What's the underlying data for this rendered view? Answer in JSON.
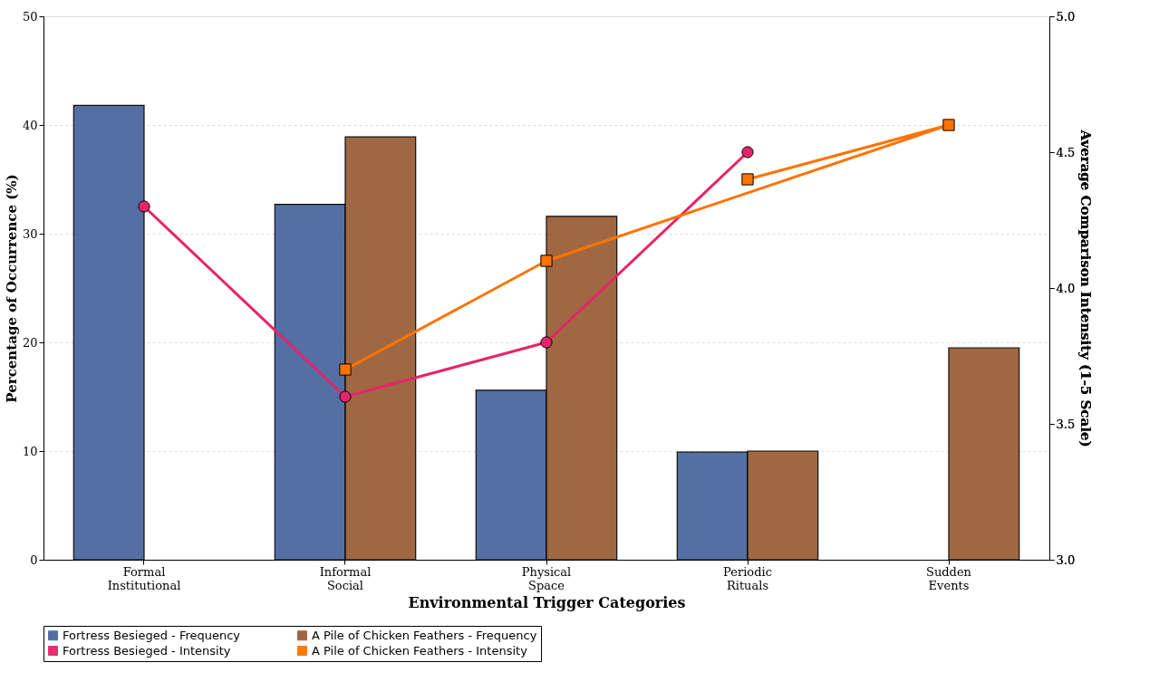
{
  "chart_data": {
    "type": "bar",
    "xlabel": "Environmental Trigger Categories",
    "ylabel": "Percentage of Occurrence (%)",
    "y2label": "Average Comparison Intensity (1-5 Scale)",
    "categories": [
      "Formal Institutional",
      "Informal Social",
      "Physical Space",
      "Periodic Rituals",
      "Sudden Events"
    ],
    "series": [
      {
        "name": "Fortress Besieged - Frequency",
        "color": "#4a68a0",
        "values": [
          41.8,
          32.7,
          15.6,
          9.9,
          null
        ]
      },
      {
        "name": "A Pile of Chicken Feathers - Frequency",
        "color": "#9a6038",
        "values": [
          null,
          38.9,
          31.6,
          10.0,
          19.5
        ]
      },
      {
        "name": "Fortress Besieged - Intensity",
        "type": "line",
        "axis": "y2",
        "marker": "circle",
        "color": "#e6246a",
        "values": [
          4.3,
          3.6,
          3.8,
          4.5,
          null
        ]
      },
      {
        "name": "A Pile of Chicken Feathers - Intensity",
        "type": "line",
        "axis": "y2",
        "marker": "square",
        "color": "#ff7300",
        "x": [
          "Informal Social",
          "Physical Space",
          "Sudden Events",
          "Periodic Rituals"
        ],
        "values": [
          3.7,
          4.1,
          4.6,
          4.4
        ]
      }
    ],
    "ylim": [
      0,
      50
    ],
    "yticks": [
      0,
      10,
      20,
      30,
      40,
      50
    ],
    "y2lim": [
      3.0,
      5.0
    ],
    "y2ticks": [
      {
        "value": 3,
        "label": "3.0"
      },
      {
        "value": 3.5,
        "label": "3.5"
      },
      {
        "value": 4,
        "label": "4.0"
      },
      {
        "value": 4.5,
        "label": "4.5"
      },
      {
        "value": 5,
        "label": "5.0"
      }
    ],
    "grid": "y",
    "legend": "bottom",
    "line_style": "solid"
  }
}
